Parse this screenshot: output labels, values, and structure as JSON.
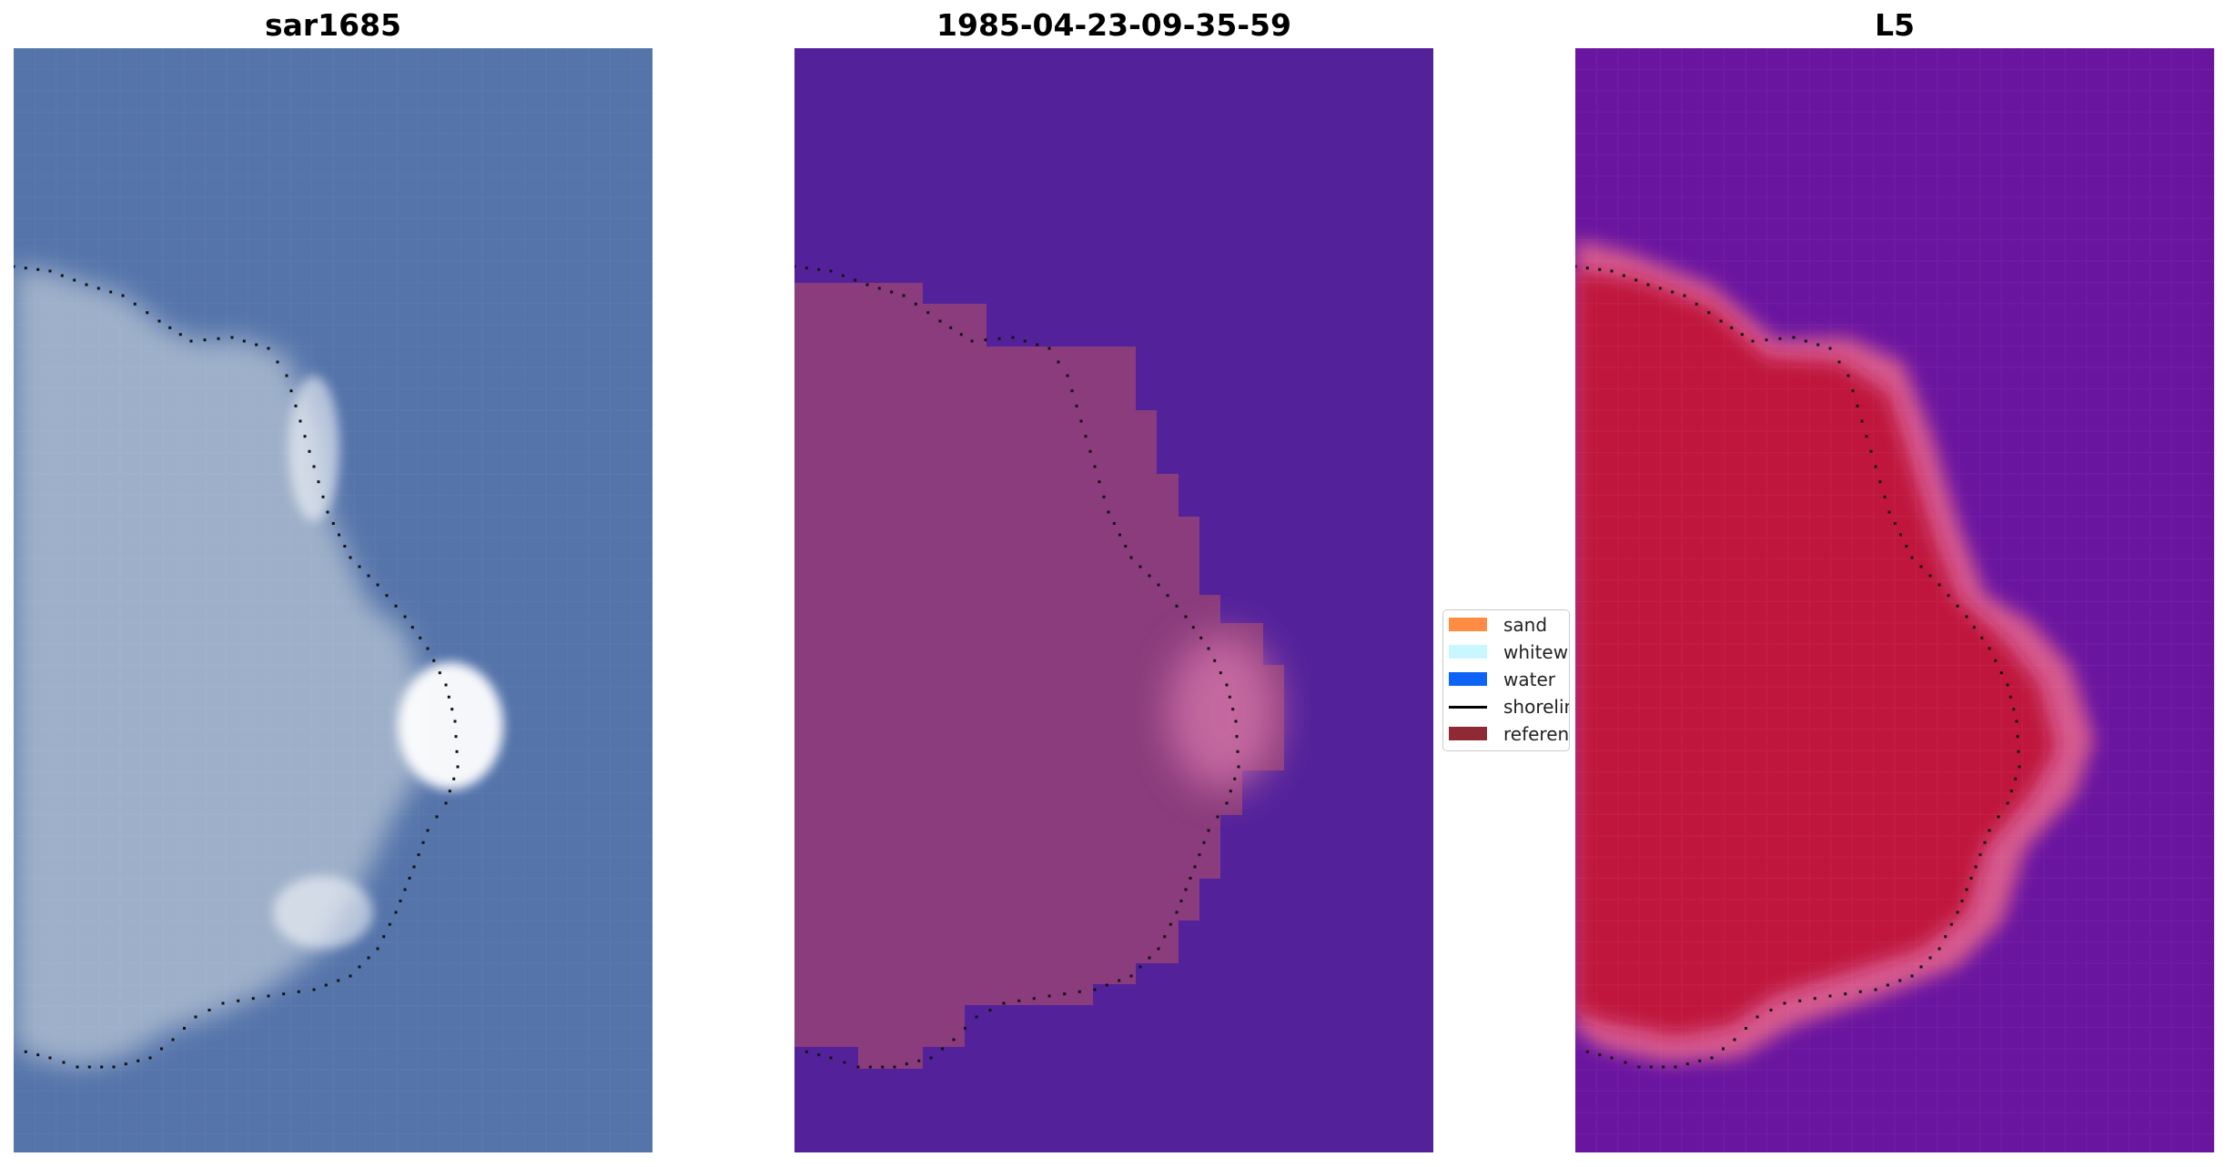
{
  "panels": [
    {
      "title": "sar1685",
      "scheme": "rgb"
    },
    {
      "title": "1985-04-23-09-35-59",
      "scheme": "classified"
    },
    {
      "title": "L5",
      "scheme": "index"
    }
  ],
  "legend": [
    {
      "label": "sand",
      "color": "#ff8c42",
      "kind": "patch"
    },
    {
      "label": "whitewater",
      "color": "#c8f7ff",
      "kind": "patch"
    },
    {
      "label": "water",
      "color": "#0d63f5",
      "kind": "patch"
    },
    {
      "label": "shoreline",
      "color": "#000000",
      "kind": "line"
    },
    {
      "label": "reference",
      "color": "#8f2a35",
      "kind": "patch"
    }
  ],
  "colors": {
    "sar_water": "#5574aa",
    "sar_land": "#9eb0c9",
    "sar_bright": "#ffffff",
    "class_water": "#53229a",
    "class_land": "#8a3c7c",
    "class_bright": "#c86aa2",
    "index_water": "#6a15a0",
    "index_land": "#c0143c",
    "index_edge": "#d65a8e",
    "shoreline_dots": "#111111"
  },
  "icons": {
    "shoreline": "dotted-line"
  }
}
